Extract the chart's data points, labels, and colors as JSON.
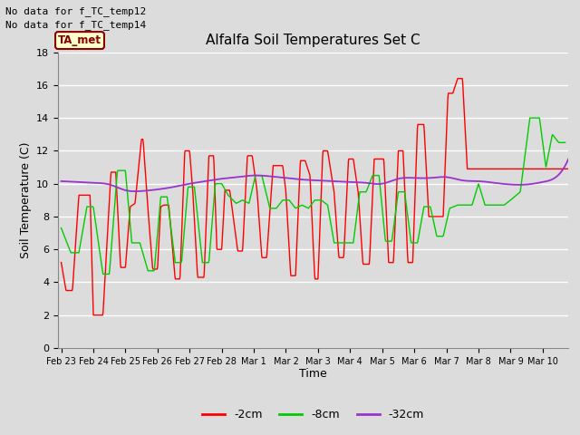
{
  "title": "Alfalfa Soil Temperatures Set C",
  "xlabel": "Time",
  "ylabel": "Soil Temperature (C)",
  "ylim": [
    0,
    18
  ],
  "background_color": "#dcdcdc",
  "plot_bg_color": "#dcdcdc",
  "no_data_lines": [
    "No data for f_TC_temp12",
    "No data for f_TC_temp14"
  ],
  "ta_met_label": "TA_met",
  "xtick_labels": [
    "Feb 23",
    "Feb 24",
    "Feb 25",
    "Feb 26",
    "Feb 27",
    "Feb 28",
    "Mar 1",
    "Mar 2",
    "Mar 3",
    "Mar 4",
    "Mar 5",
    "Mar 6",
    "Mar 7",
    "Mar 8",
    "Mar 9",
    "Mar 10"
  ],
  "legend_labels": [
    "-2cm",
    "-8cm",
    "-32cm"
  ],
  "legend_colors": [
    "#ff0000",
    "#00cc00",
    "#9933cc"
  ],
  "red_ctrl_x": [
    0.0,
    0.15,
    0.35,
    0.55,
    0.75,
    0.9,
    1.0,
    1.15,
    1.3,
    1.55,
    1.7,
    1.85,
    2.0,
    2.15,
    2.3,
    2.5,
    2.55,
    2.7,
    2.85,
    3.0,
    3.1,
    3.2,
    3.35,
    3.55,
    3.7,
    3.85,
    4.0,
    4.1,
    4.25,
    4.45,
    4.6,
    4.75,
    4.85,
    5.0,
    5.1,
    5.25,
    5.5,
    5.65,
    5.8,
    5.95,
    6.1,
    6.25,
    6.4,
    6.6,
    6.75,
    6.9,
    7.0,
    7.15,
    7.3,
    7.45,
    7.6,
    7.75,
    7.9,
    8.0,
    8.15,
    8.3,
    8.5,
    8.65,
    8.8,
    8.95,
    9.1,
    9.25,
    9.4,
    9.6,
    9.75,
    9.9,
    10.05,
    10.2,
    10.35,
    10.5,
    10.65,
    10.8,
    10.95,
    11.1,
    11.3,
    11.45,
    11.6,
    11.75,
    11.9,
    12.05,
    12.2,
    12.35,
    12.5,
    12.65,
    12.8,
    12.95,
    13.1,
    13.25,
    13.45,
    13.6,
    13.75,
    13.9,
    14.1,
    14.3,
    14.5,
    14.65,
    14.8,
    14.95,
    15.1,
    15.3,
    15.5,
    15.65,
    15.8
  ],
  "red_ctrl_y": [
    5.2,
    3.5,
    3.5,
    9.3,
    9.3,
    9.3,
    2.0,
    2.0,
    2.0,
    10.7,
    10.7,
    4.9,
    4.9,
    8.6,
    8.8,
    12.7,
    12.7,
    8.5,
    4.8,
    4.8,
    8.6,
    8.7,
    8.7,
    4.2,
    4.2,
    12.0,
    12.0,
    9.5,
    4.3,
    4.3,
    11.7,
    11.7,
    6.0,
    6.0,
    9.6,
    9.6,
    5.9,
    5.9,
    11.7,
    11.7,
    9.6,
    5.5,
    5.5,
    11.1,
    11.1,
    11.1,
    9.5,
    4.4,
    4.4,
    11.4,
    11.4,
    10.5,
    4.2,
    4.2,
    12.0,
    12.0,
    9.5,
    5.5,
    5.5,
    11.5,
    11.5,
    9.5,
    5.1,
    5.1,
    11.5,
    11.5,
    11.5,
    5.2,
    5.2,
    12.0,
    12.0,
    5.2,
    5.2,
    13.6,
    13.6,
    8.0,
    8.0,
    8.0,
    8.0,
    15.5,
    15.5,
    16.4,
    16.4,
    10.9,
    10.9,
    10.9,
    10.9,
    10.9,
    10.9,
    10.9,
    10.9,
    10.9,
    10.9,
    10.9,
    10.9,
    10.9,
    10.9,
    10.9,
    10.9,
    10.9,
    10.9,
    10.9,
    10.9
  ],
  "green_ctrl_x": [
    0.0,
    0.3,
    0.55,
    0.8,
    1.0,
    1.3,
    1.5,
    1.75,
    2.0,
    2.2,
    2.45,
    2.7,
    2.9,
    3.1,
    3.3,
    3.55,
    3.75,
    3.95,
    4.15,
    4.4,
    4.6,
    4.8,
    5.0,
    5.2,
    5.45,
    5.65,
    5.85,
    6.05,
    6.25,
    6.5,
    6.7,
    6.9,
    7.1,
    7.3,
    7.5,
    7.7,
    7.9,
    8.1,
    8.3,
    8.5,
    8.7,
    8.9,
    9.1,
    9.3,
    9.5,
    9.7,
    9.9,
    10.1,
    10.3,
    10.5,
    10.7,
    10.9,
    11.1,
    11.3,
    11.5,
    11.7,
    11.9,
    12.1,
    12.35,
    12.6,
    12.8,
    13.0,
    13.2,
    13.4,
    13.6,
    13.8,
    14.0,
    14.3,
    14.6,
    14.9,
    15.1,
    15.3,
    15.5,
    15.7
  ],
  "green_ctrl_y": [
    7.3,
    5.8,
    5.8,
    8.6,
    8.6,
    4.5,
    4.5,
    10.8,
    10.8,
    6.4,
    6.4,
    4.7,
    4.7,
    9.2,
    9.2,
    5.2,
    5.2,
    9.8,
    9.8,
    5.2,
    5.2,
    10.0,
    10.0,
    9.3,
    8.8,
    9.0,
    8.8,
    10.5,
    10.5,
    8.5,
    8.5,
    9.0,
    9.0,
    8.5,
    8.7,
    8.5,
    9.0,
    9.0,
    8.7,
    6.4,
    6.4,
    6.4,
    6.4,
    9.5,
    9.5,
    10.5,
    10.5,
    6.5,
    6.5,
    9.5,
    9.5,
    6.4,
    6.4,
    8.6,
    8.6,
    6.8,
    6.8,
    8.5,
    8.7,
    8.7,
    8.7,
    10.0,
    8.7,
    8.7,
    8.7,
    8.7,
    9.0,
    9.5,
    14.0,
    14.0,
    11.0,
    13.0,
    12.5,
    12.5
  ],
  "purple_ctrl_x": [
    0.0,
    0.5,
    1.0,
    1.5,
    2.0,
    2.5,
    3.0,
    3.5,
    4.0,
    4.5,
    5.0,
    5.5,
    6.0,
    6.5,
    7.0,
    7.5,
    8.0,
    8.5,
    9.0,
    9.5,
    10.0,
    10.5,
    11.0,
    11.5,
    12.0,
    12.5,
    13.0,
    13.5,
    14.0,
    14.5,
    15.0,
    15.5,
    15.8
  ],
  "purple_ctrl_y": [
    10.15,
    10.1,
    10.05,
    9.95,
    9.6,
    9.55,
    9.65,
    9.8,
    10.0,
    10.15,
    10.3,
    10.4,
    10.5,
    10.45,
    10.35,
    10.25,
    10.2,
    10.15,
    10.1,
    10.05,
    10.0,
    10.3,
    10.35,
    10.35,
    10.4,
    10.2,
    10.15,
    10.05,
    9.95,
    9.95,
    10.1,
    10.55,
    11.5
  ]
}
